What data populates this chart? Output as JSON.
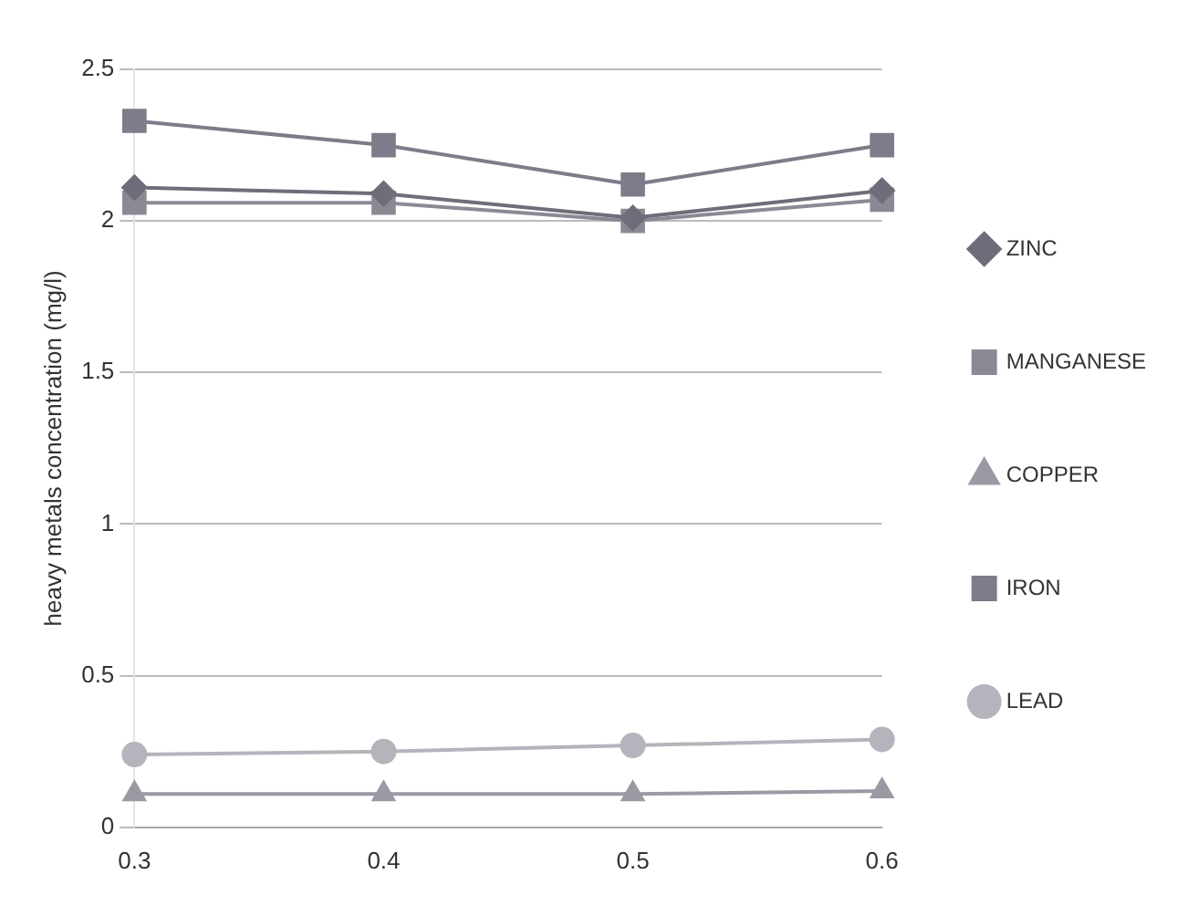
{
  "chart_data": {
    "type": "line",
    "ylabel": "heavy metals concentration (mg/l)",
    "categories": [
      "0.3",
      "0.4",
      "0.5",
      "0.6"
    ],
    "series": [
      {
        "name": "ZINC",
        "color": "#6e6e7a",
        "values": [
          2.11,
          2.09,
          2.01,
          2.1
        ],
        "marker": "diamond"
      },
      {
        "name": "MANGANESE",
        "color": "#8a8a94",
        "values": [
          2.06,
          2.06,
          2.0,
          2.07
        ],
        "marker": "square"
      },
      {
        "name": "COPPER",
        "color": "#9a9aa4",
        "values": [
          0.11,
          0.11,
          0.11,
          0.12
        ],
        "marker": "triangle"
      },
      {
        "name": "IRON",
        "color": "#7c7c8a",
        "values": [
          2.33,
          2.25,
          2.12,
          2.25
        ],
        "marker": "square"
      },
      {
        "name": "LEAD",
        "color": "#b4b4bc",
        "values": [
          0.24,
          0.25,
          0.27,
          0.29
        ],
        "marker": "circle"
      }
    ],
    "ylim": [
      0,
      2.5
    ],
    "yticks": [
      0,
      0.5,
      1,
      1.5,
      2,
      2.5
    ],
    "grid": "y",
    "legend": "right"
  }
}
